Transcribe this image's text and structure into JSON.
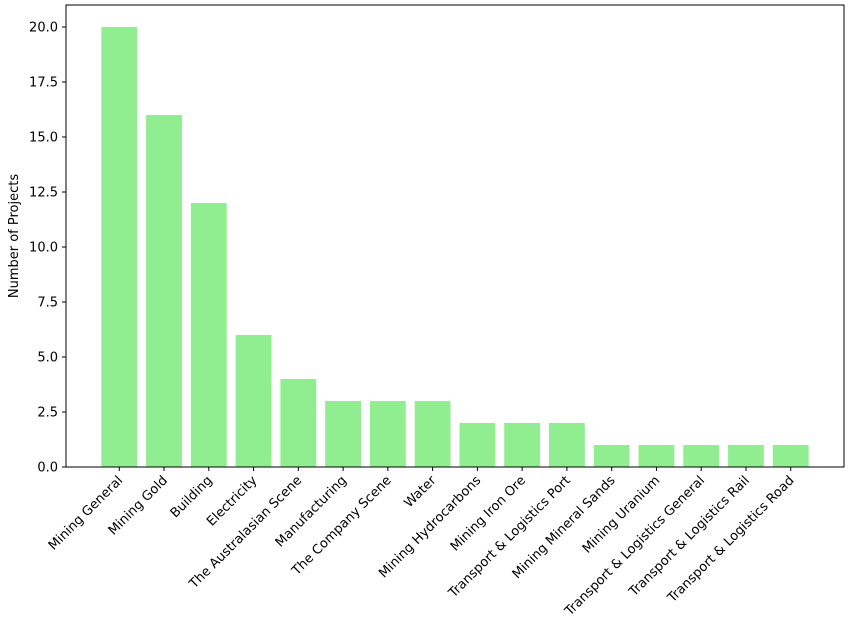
{
  "chart_data": {
    "type": "bar",
    "title": "",
    "xlabel": "",
    "ylabel": "Number of Projects",
    "categories": [
      "Mining General",
      "Mining Gold",
      "Building",
      "Electricity",
      "The Australasian Scene",
      "Manufacturing",
      "The Company Scene",
      "Water",
      "Mining Hydrocarbons",
      "Mining Iron Ore",
      "Transport & Logistics Port",
      "Mining Mineral Sands",
      "Mining Uranium",
      "Transport & Logistics General",
      "Transport & Logistics Rail",
      "Transport & Logistics Road"
    ],
    "values": [
      20,
      16,
      12,
      6,
      4,
      3,
      3,
      3,
      2,
      2,
      2,
      1,
      1,
      1,
      1,
      1
    ],
    "ylim": [
      0,
      21
    ],
    "yticks": [
      "0.0",
      "2.5",
      "5.0",
      "7.5",
      "10.0",
      "12.5",
      "15.0",
      "17.5",
      "20.0"
    ],
    "bar_color": "#90ee90",
    "grid": false
  }
}
